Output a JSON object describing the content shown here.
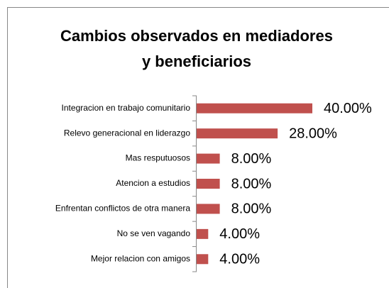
{
  "chart_data": {
    "type": "bar",
    "orientation": "horizontal",
    "title": [
      "Cambios observados en mediadores",
      "y beneficiarios"
    ],
    "categories": [
      "Integracion en trabajo comunitario",
      "Relevo generacional en liderazgo",
      "Mas resputuosos",
      "Atencion a estudios",
      "Enfrentan conflictos de otra manera",
      "No se ven vagando",
      "Mejor relacion con amigos"
    ],
    "values": [
      40,
      28,
      8,
      8,
      8,
      4,
      4
    ],
    "value_labels": [
      "40.00%",
      "28.00%",
      "8.00%",
      "8.00%",
      "8.00%",
      "4.00%",
      "4.00%"
    ],
    "color": "#c0504d"
  }
}
